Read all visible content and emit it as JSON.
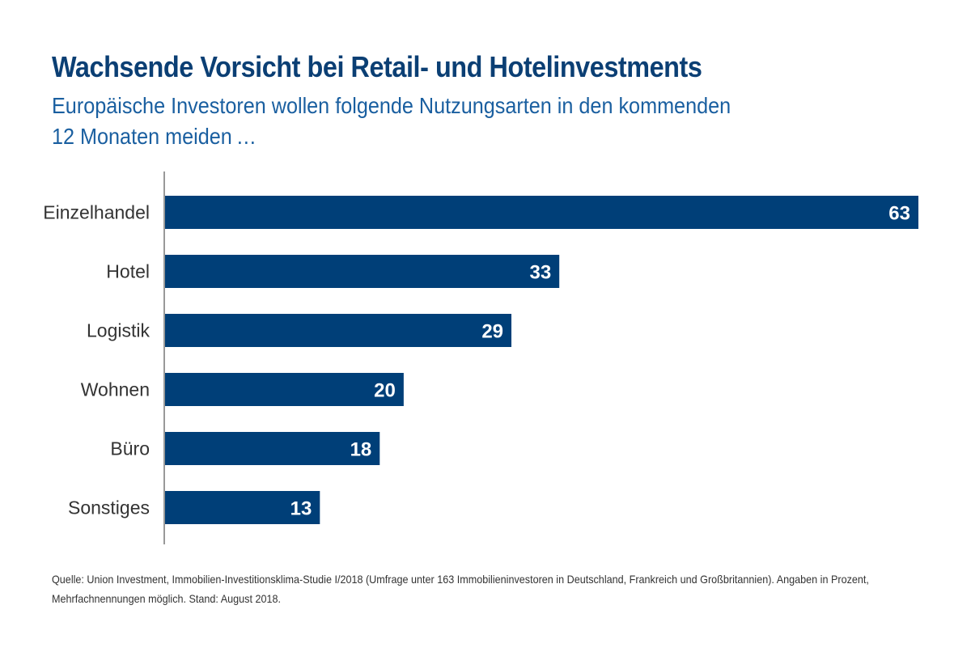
{
  "chart_data": {
    "type": "bar",
    "orientation": "horizontal",
    "title": "Wachsende Vorsicht bei Retail- und Hotelinvestments",
    "subtitle_lines": [
      "Europäische Investoren wollen folgende Nutzungsarten in den kommenden",
      "12 Monaten meiden …"
    ],
    "categories": [
      "Einzelhandel",
      "Hotel",
      "Logistik",
      "Wohnen",
      "Büro",
      "Sonstiges"
    ],
    "values": [
      63,
      33,
      29,
      20,
      18,
      13
    ],
    "unit": "%",
    "xlim": [
      0,
      63
    ],
    "grid": false,
    "bar_color": "#003f78",
    "footnote_lines": [
      "Quelle: Union Investment, Immobilien-Investitionsklima-Studie I/2018 (Umfrage unter 163 Immobilieninvestoren in Deutschland, Frankreich und Großbritannien). Angaben in Prozent,",
      "Mehrfachnennungen möglich. Stand: August 2018."
    ]
  }
}
